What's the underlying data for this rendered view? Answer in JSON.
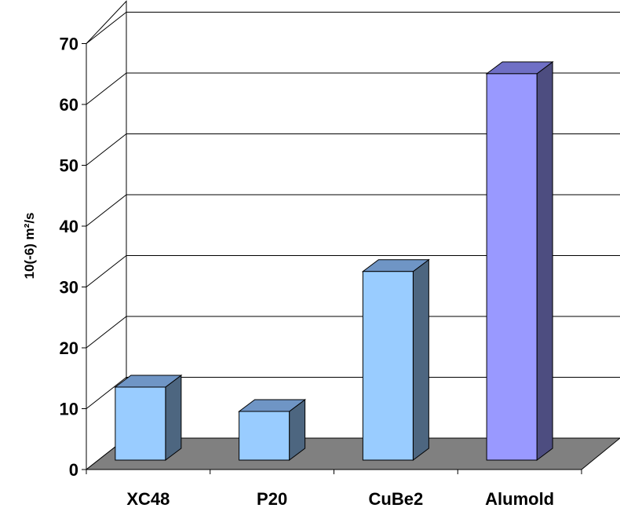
{
  "chart_data": {
    "type": "bar",
    "categories": [
      "XC48",
      "P20",
      "CuBe2",
      "Alumold"
    ],
    "values": [
      12,
      8,
      31,
      63.5
    ],
    "ylabel": "10(-6) m²/s",
    "xlabel": "",
    "ylim": [
      0,
      70
    ],
    "yticks": [
      0,
      10,
      20,
      30,
      40,
      50,
      60,
      70
    ],
    "grid": true,
    "style": "3d-column",
    "colors": {
      "bar_front": [
        "#99ccff",
        "#99ccff",
        "#99ccff",
        "#9999ff"
      ],
      "bar_side": [
        "#4d6680",
        "#4d6680",
        "#4d6680",
        "#4d4d80"
      ],
      "bar_top": [
        "#6f95c5",
        "#6f95c5",
        "#6f95c5",
        "#6f6fc5"
      ],
      "floor": "#808080"
    }
  }
}
